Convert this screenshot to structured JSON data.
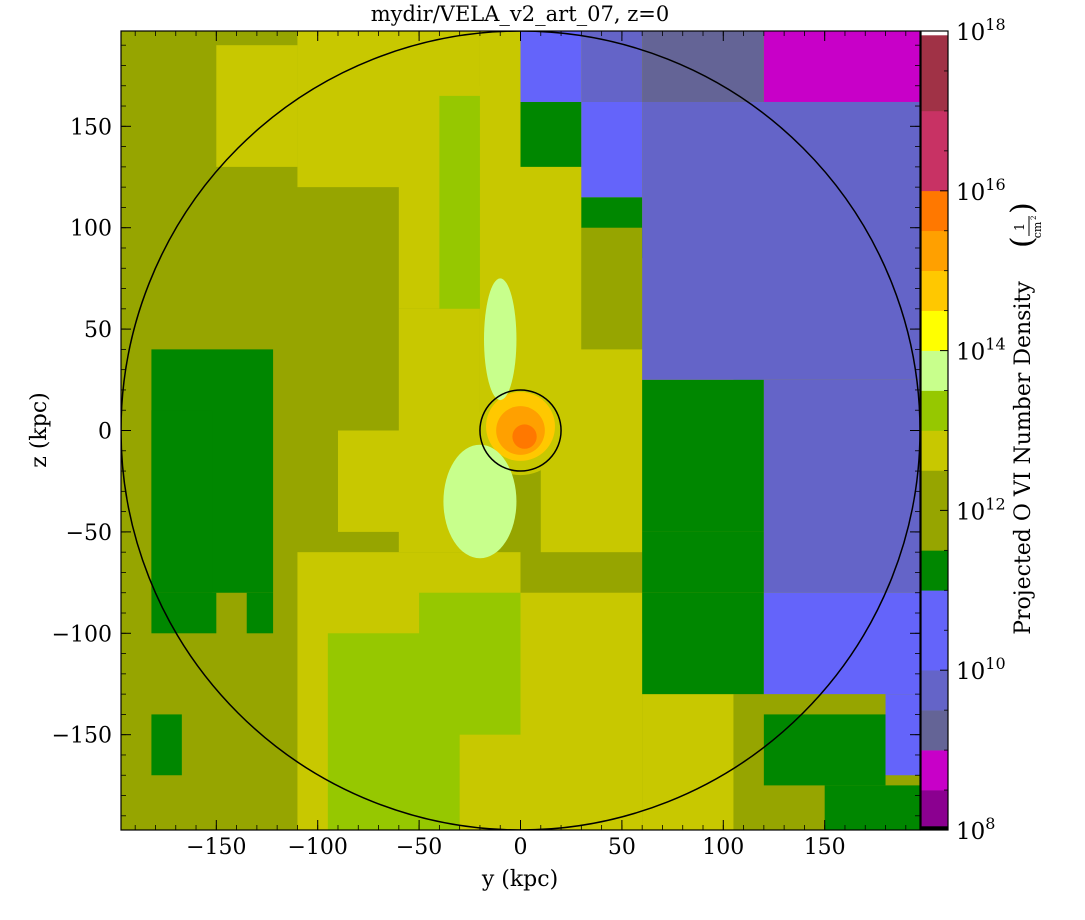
{
  "chart_data": {
    "type": "heatmap",
    "title": "mydir/VELA_v2_art_07, z=0",
    "xlabel": "y  (kpc)",
    "ylabel": "z  (kpc)",
    "xlim": [
      -197,
      197
    ],
    "ylim": [
      -197,
      197
    ],
    "xticks": [
      {
        "value": -150,
        "label": "−150"
      },
      {
        "value": -100,
        "label": "−100"
      },
      {
        "value": -50,
        "label": "−50"
      },
      {
        "value": 0,
        "label": "0"
      },
      {
        "value": 50,
        "label": "50"
      },
      {
        "value": 100,
        "label": "100"
      },
      {
        "value": 150,
        "label": "150"
      }
    ],
    "yticks": [
      {
        "value": 150,
        "label": "150"
      },
      {
        "value": 100,
        "label": "100"
      },
      {
        "value": 50,
        "label": "50"
      },
      {
        "value": 0,
        "label": "0"
      },
      {
        "value": -50,
        "label": "−50"
      },
      {
        "value": -100,
        "label": "−100"
      },
      {
        "value": -150,
        "label": "−150"
      }
    ],
    "circles": [
      {
        "center": [
          0,
          0
        ],
        "radius_kpc": 197
      },
      {
        "center": [
          0,
          0
        ],
        "radius_kpc": 20
      }
    ],
    "colorbar": {
      "label": "Projected O VI Number Density",
      "unit_numerator": "1",
      "unit_denominator": "cm",
      "unit_exponent": "2",
      "scale": "log",
      "log_min": 8,
      "log_max": 18,
      "ticks": [
        {
          "log": 8,
          "base": "10",
          "exp": "8"
        },
        {
          "log": 10,
          "base": "10",
          "exp": "10"
        },
        {
          "log": 12,
          "base": "10",
          "exp": "12"
        },
        {
          "log": 14,
          "base": "10",
          "exp": "14"
        },
        {
          "log": 16,
          "base": "10",
          "exp": "16"
        },
        {
          "log": 18,
          "base": "10",
          "exp": "18"
        }
      ],
      "bins": [
        {
          "from": 8.0,
          "to": 8.05,
          "color": "#000000"
        },
        {
          "from": 8.05,
          "to": 8.5,
          "color": "#8b0090"
        },
        {
          "from": 8.5,
          "to": 9.0,
          "color": "#c800c8"
        },
        {
          "from": 9.0,
          "to": 9.5,
          "color": "#646496"
        },
        {
          "from": 9.5,
          "to": 10.0,
          "color": "#6464c8"
        },
        {
          "from": 10.0,
          "to": 10.5,
          "color": "#6464fa"
        },
        {
          "from": 10.5,
          "to": 11.0,
          "color": "#6464fa"
        },
        {
          "from": 11.0,
          "to": 11.5,
          "color": "#008700"
        },
        {
          "from": 11.5,
          "to": 12.0,
          "color": "#96a500"
        },
        {
          "from": 12.0,
          "to": 12.5,
          "color": "#96a500"
        },
        {
          "from": 12.5,
          "to": 13.0,
          "color": "#c8c800"
        },
        {
          "from": 13.0,
          "to": 13.5,
          "color": "#96c800"
        },
        {
          "from": 13.5,
          "to": 14.0,
          "color": "#c8ff8c"
        },
        {
          "from": 14.0,
          "to": 14.5,
          "color": "#ffff00"
        },
        {
          "from": 14.5,
          "to": 15.0,
          "color": "#ffc800"
        },
        {
          "from": 15.0,
          "to": 15.5,
          "color": "#ffa000"
        },
        {
          "from": 15.5,
          "to": 16.0,
          "color": "#ff7800"
        },
        {
          "from": 16.0,
          "to": 16.5,
          "color": "#c83264"
        },
        {
          "from": 16.5,
          "to": 17.0,
          "color": "#c83264"
        },
        {
          "from": 17.0,
          "to": 17.5,
          "color": "#a03246"
        },
        {
          "from": 17.5,
          "to": 17.95,
          "color": "#a03246"
        },
        {
          "from": 17.95,
          "to": 18.0,
          "color": "#ffffff"
        }
      ]
    },
    "regions": [
      {
        "x0": -197,
        "y0": -197,
        "x1": 197,
        "y1": 197,
        "color": "#96a500"
      },
      {
        "x0": -110,
        "y0": 120,
        "x1": 0,
        "y1": 197,
        "color": "#c8c800"
      },
      {
        "x0": -150,
        "y0": 130,
        "x1": -110,
        "y1": 190,
        "color": "#c8c800"
      },
      {
        "x0": -60,
        "y0": 60,
        "x1": 0,
        "y1": 160,
        "color": "#c8c800"
      },
      {
        "x0": -20,
        "y0": 170,
        "x1": 0,
        "y1": 197,
        "color": "#96a500"
      },
      {
        "x0": -40,
        "y0": 60,
        "x1": 10,
        "y1": 165,
        "color": "#96c800"
      },
      {
        "x0": -60,
        "y0": -60,
        "x1": -20,
        "y1": 60,
        "color": "#c8c800"
      },
      {
        "x0": -90,
        "y0": -50,
        "x1": -50,
        "y1": 0,
        "color": "#c8c800"
      },
      {
        "x0": -20,
        "y0": 0,
        "x1": 30,
        "y1": 200,
        "color": "#c8c800"
      },
      {
        "x0": 30,
        "y0": 40,
        "x1": 60,
        "y1": 100,
        "color": "#96a500"
      },
      {
        "x0": 10,
        "y0": -60,
        "x1": 60,
        "y1": 40,
        "color": "#c8c800"
      },
      {
        "x0": -110,
        "y0": -197,
        "x1": 0,
        "y1": -60,
        "color": "#c8c800"
      },
      {
        "x0": -95,
        "y0": -197,
        "x1": -30,
        "y1": -100,
        "color": "#96c800"
      },
      {
        "x0": -50,
        "y0": -150,
        "x1": 0,
        "y1": -80,
        "color": "#96c800"
      },
      {
        "x0": 0,
        "y0": -197,
        "x1": 60,
        "y1": -80,
        "color": "#c8c800"
      },
      {
        "x0": 60,
        "y0": -197,
        "x1": 105,
        "y1": -130,
        "color": "#c8c800"
      },
      {
        "x0": 60,
        "y0": -130,
        "x1": 105,
        "y1": -100,
        "color": "#c8c800"
      },
      {
        "x0": -182,
        "y0": -80,
        "x1": -122,
        "y1": 40,
        "color": "#008700"
      },
      {
        "x0": -182,
        "y0": -100,
        "x1": -150,
        "y1": -80,
        "color": "#008700"
      },
      {
        "x0": -135,
        "y0": -100,
        "x1": -122,
        "y1": -80,
        "color": "#008700"
      },
      {
        "x0": -152,
        "y0": -80,
        "x1": -182,
        "y1": 10,
        "color": "#008700"
      },
      {
        "x0": -182,
        "y0": -170,
        "x1": -167,
        "y1": -140,
        "color": "#008700"
      },
      {
        "x0": 0,
        "y0": 130,
        "x1": 30,
        "y1": 162,
        "color": "#008700"
      },
      {
        "x0": 30,
        "y0": 100,
        "x1": 60,
        "y1": 115,
        "color": "#008700"
      },
      {
        "x0": 60,
        "y0": 85,
        "x1": 75,
        "y1": 100,
        "color": "#008700"
      },
      {
        "x0": 75,
        "y0": 60,
        "x1": 90,
        "y1": 72,
        "color": "#008700"
      },
      {
        "x0": 90,
        "y0": 40,
        "x1": 105,
        "y1": 55,
        "color": "#008700"
      },
      {
        "x0": 105,
        "y0": 25,
        "x1": 120,
        "y1": 40,
        "color": "#008700"
      },
      {
        "x0": 60,
        "y0": -50,
        "x1": 120,
        "y1": 25,
        "color": "#008700"
      },
      {
        "x0": 60,
        "y0": -80,
        "x1": 120,
        "y1": -50,
        "color": "#008700"
      },
      {
        "x0": 60,
        "y0": -130,
        "x1": 120,
        "y1": -80,
        "color": "#008700"
      },
      {
        "x0": 120,
        "y0": -175,
        "x1": 180,
        "y1": -140,
        "color": "#008700"
      },
      {
        "x0": 150,
        "y0": -197,
        "x1": 197,
        "y1": -175,
        "color": "#008700"
      },
      {
        "x0": 0,
        "y0": 162,
        "x1": 30,
        "y1": 197,
        "color": "#6464fa"
      },
      {
        "x0": 30,
        "y0": 115,
        "x1": 60,
        "y1": 162,
        "color": "#6464fa"
      },
      {
        "x0": 30,
        "y0": 162,
        "x1": 60,
        "y1": 197,
        "color": "#6464c8"
      },
      {
        "x0": 60,
        "y0": 162,
        "x1": 120,
        "y1": 197,
        "color": "#646496"
      },
      {
        "x0": 120,
        "y0": 162,
        "x1": 197,
        "y1": 197,
        "color": "#c800c8"
      },
      {
        "x0": 60,
        "y0": 25,
        "x1": 197,
        "y1": 162,
        "color": "#6464c8"
      },
      {
        "x0": 120,
        "y0": -80,
        "x1": 197,
        "y1": 25,
        "color": "#6464c8"
      },
      {
        "x0": 120,
        "y0": -130,
        "x1": 197,
        "y1": -80,
        "color": "#6464fa"
      },
      {
        "x0": 180,
        "y0": -170,
        "x1": 197,
        "y1": -130,
        "color": "#6464fa"
      }
    ],
    "blobs": [
      {
        "x": 0,
        "y": 0,
        "rx": 22,
        "ry": 22,
        "color": "#c8c800"
      },
      {
        "x": 0,
        "y": 2,
        "rx": 17,
        "ry": 17,
        "color": "#ffc800"
      },
      {
        "x": 0,
        "y": 0,
        "rx": 12,
        "ry": 12,
        "color": "#ffa000"
      },
      {
        "x": 2,
        "y": -3,
        "rx": 6,
        "ry": 6,
        "color": "#ff7800"
      },
      {
        "x": -20,
        "y": -35,
        "rx": 18,
        "ry": 28,
        "color": "#c8ff8c"
      },
      {
        "x": -10,
        "y": 45,
        "rx": 8,
        "ry": 30,
        "color": "#c8ff8c"
      },
      {
        "x": 15,
        "y": 30,
        "rx": 8,
        "ry": 10,
        "color": "#c8c800"
      }
    ]
  }
}
